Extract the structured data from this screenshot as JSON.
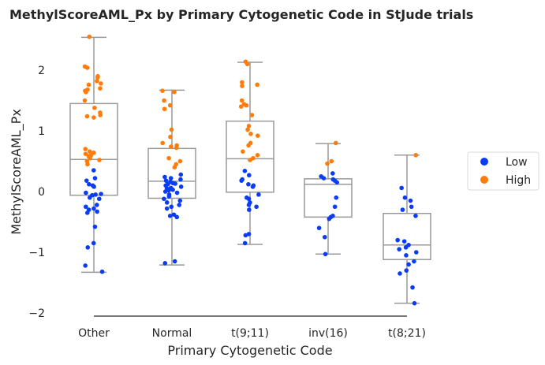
{
  "chart_data": {
    "type": "boxplot-strip",
    "title": "MethylScoreAML_Px by Primary Cytogenetic Code in StJude trials",
    "xlabel": "Primary Cytogenetic Code",
    "ylabel": "MethylScoreAML_Px",
    "categories": [
      "Other",
      "Normal",
      "t(9;11)",
      "inv(16)",
      "t(8;21)"
    ],
    "ylim": [
      -2.1,
      2.65
    ],
    "yticks": [
      -2,
      -1,
      0,
      1,
      2
    ],
    "grid": false,
    "legend": {
      "placement": "right",
      "entries": [
        {
          "label": "Low",
          "color": "#0a3cf5"
        },
        {
          "label": "High",
          "color": "#ff7c0a"
        }
      ]
    },
    "box_color": "#999999",
    "boxes": [
      {
        "category": "Other",
        "whisker_low": -1.33,
        "q1": -0.06,
        "median": 0.53,
        "q3": 1.45,
        "whisker_high": 2.54
      },
      {
        "category": "Normal",
        "whisker_low": -1.21,
        "q1": -0.11,
        "median": 0.17,
        "q3": 0.71,
        "whisker_high": 1.67
      },
      {
        "category": "t(9;11)",
        "whisker_low": -0.87,
        "q1": -0.01,
        "median": 0.54,
        "q3": 1.16,
        "whisker_high": 2.13
      },
      {
        "category": "inv(16)",
        "whisker_low": -1.03,
        "q1": -0.42,
        "median": 0.12,
        "q3": 0.21,
        "whisker_high": 0.79
      },
      {
        "category": "t(8;21)",
        "whisker_low": -1.84,
        "q1": -1.12,
        "median": -0.88,
        "q3": -0.36,
        "whisker_high": 0.6
      }
    ],
    "series": [
      {
        "name": "Low",
        "color": "#0a3cf5",
        "points": [
          {
            "category": "Other",
            "values": [
              0.35,
              0.22,
              0.18,
              0.12,
              0.1,
              0.08,
              -0.02,
              -0.04,
              -0.05,
              -0.06,
              -0.1,
              -0.12,
              -0.22,
              -0.25,
              -0.28,
              -0.3,
              -0.33,
              -0.35,
              -0.58,
              -0.85,
              -0.92,
              -1.22,
              -1.32
            ]
          },
          {
            "category": "Normal",
            "values": [
              0.28,
              0.24,
              0.22,
              0.2,
              0.18,
              0.16,
              0.14,
              0.13,
              0.12,
              0.1,
              0.08,
              0.06,
              0.05,
              0.03,
              0.02,
              0.0,
              -0.02,
              -0.05,
              -0.08,
              -0.12,
              -0.15,
              -0.18,
              -0.22,
              -0.25,
              -0.28,
              -0.38,
              -0.4,
              -0.42,
              -1.15,
              -1.18
            ]
          },
          {
            "category": "t(9;11)",
            "values": [
              0.34,
              0.27,
              0.2,
              0.18,
              0.12,
              0.1,
              0.08,
              -0.05,
              -0.1,
              -0.12,
              -0.18,
              -0.22,
              -0.25,
              -0.3,
              -0.7,
              -0.72,
              -0.85
            ]
          },
          {
            "category": "inv(16)",
            "values": [
              0.3,
              0.25,
              0.22,
              0.2,
              0.18,
              0.15,
              -0.1,
              -0.25,
              -0.4,
              -0.42,
              -0.45,
              -0.6,
              -0.75,
              -1.03
            ]
          },
          {
            "category": "t(8;21)",
            "values": [
              0.06,
              -0.1,
              -0.15,
              -0.25,
              -0.3,
              -0.4,
              -0.8,
              -0.82,
              -0.88,
              -0.92,
              -0.95,
              -1.0,
              -1.05,
              -1.15,
              -1.2,
              -1.3,
              -1.35,
              -1.58,
              -1.84
            ]
          }
        ]
      },
      {
        "name": "High",
        "color": "#ff7c0a",
        "points": [
          {
            "category": "Other",
            "values": [
              2.55,
              2.06,
              2.04,
              1.9,
              1.88,
              1.82,
              1.78,
              1.76,
              1.7,
              1.68,
              1.66,
              1.64,
              1.5,
              1.38,
              1.3,
              1.26,
              1.24,
              1.22,
              0.7,
              0.66,
              0.64,
              0.62,
              0.6,
              0.58,
              0.55,
              0.52,
              0.5,
              0.45
            ]
          },
          {
            "category": "Normal",
            "values": [
              1.66,
              1.64,
              1.5,
              1.42,
              1.36,
              1.02,
              0.9,
              0.8,
              0.76,
              0.74,
              0.72,
              0.55,
              0.5,
              0.45,
              0.4
            ]
          },
          {
            "category": "t(9;11)",
            "values": [
              2.14,
              2.1,
              1.8,
              1.76,
              1.74,
              1.5,
              1.44,
              1.42,
              1.4,
              1.26,
              1.08,
              1.02,
              0.95,
              0.92,
              0.8,
              0.76,
              0.66,
              0.6,
              0.55,
              0.52
            ]
          },
          {
            "category": "inv(16)",
            "values": [
              0.8,
              0.5,
              0.46
            ]
          },
          {
            "category": "t(8;21)",
            "values": [
              0.6
            ]
          }
        ]
      }
    ]
  }
}
